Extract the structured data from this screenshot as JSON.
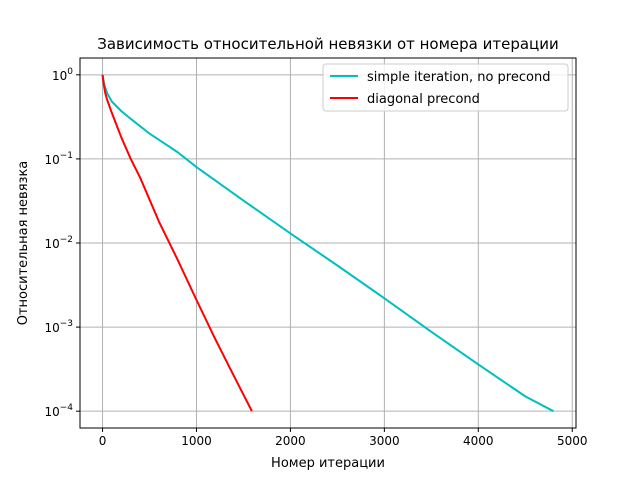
{
  "chart_data": {
    "type": "line",
    "title": "Зависимость относительной невязки от номера итерации",
    "xlabel": "Номер итерации",
    "ylabel": "Относительная невязка",
    "yscale": "log",
    "xlim": [
      -240,
      5040
    ],
    "ylim": [
      6.31e-05,
      1.585
    ],
    "grid": true,
    "legend_position": "upper-right",
    "x_ticks": [
      {
        "value": 0,
        "label": "0"
      },
      {
        "value": 1000,
        "label": "1000"
      },
      {
        "value": 2000,
        "label": "2000"
      },
      {
        "value": 3000,
        "label": "3000"
      },
      {
        "value": 4000,
        "label": "4000"
      },
      {
        "value": 5000,
        "label": "5000"
      }
    ],
    "y_ticks": [
      {
        "value": 1,
        "base": "10",
        "exp": "0"
      },
      {
        "value": 0.1,
        "base": "10",
        "exp": "−1"
      },
      {
        "value": 0.01,
        "base": "10",
        "exp": "−2"
      },
      {
        "value": 0.001,
        "base": "10",
        "exp": "−3"
      },
      {
        "value": 0.0001,
        "base": "10",
        "exp": "−4"
      }
    ],
    "series": [
      {
        "name": "simple iteration, no precond",
        "color": "#00bfbf",
        "x": [
          0,
          20,
          50,
          100,
          200,
          300,
          500,
          800,
          1000,
          1500,
          2000,
          2500,
          3000,
          3500,
          4000,
          4500,
          4800
        ],
        "y": [
          1.0,
          0.75,
          0.6,
          0.48,
          0.37,
          0.3,
          0.2,
          0.12,
          0.08,
          0.032,
          0.013,
          0.0054,
          0.0022,
          0.00088,
          0.00036,
          0.00015,
          0.0001
        ]
      },
      {
        "name": "diagonal precond",
        "color": "#ff0000",
        "x": [
          0,
          10,
          30,
          50,
          100,
          200,
          300,
          400,
          600,
          800,
          1000,
          1200,
          1400,
          1590
        ],
        "y": [
          1.0,
          0.8,
          0.6,
          0.5,
          0.35,
          0.18,
          0.1,
          0.06,
          0.018,
          0.0063,
          0.0021,
          0.00072,
          0.00026,
          0.0001
        ]
      }
    ]
  }
}
